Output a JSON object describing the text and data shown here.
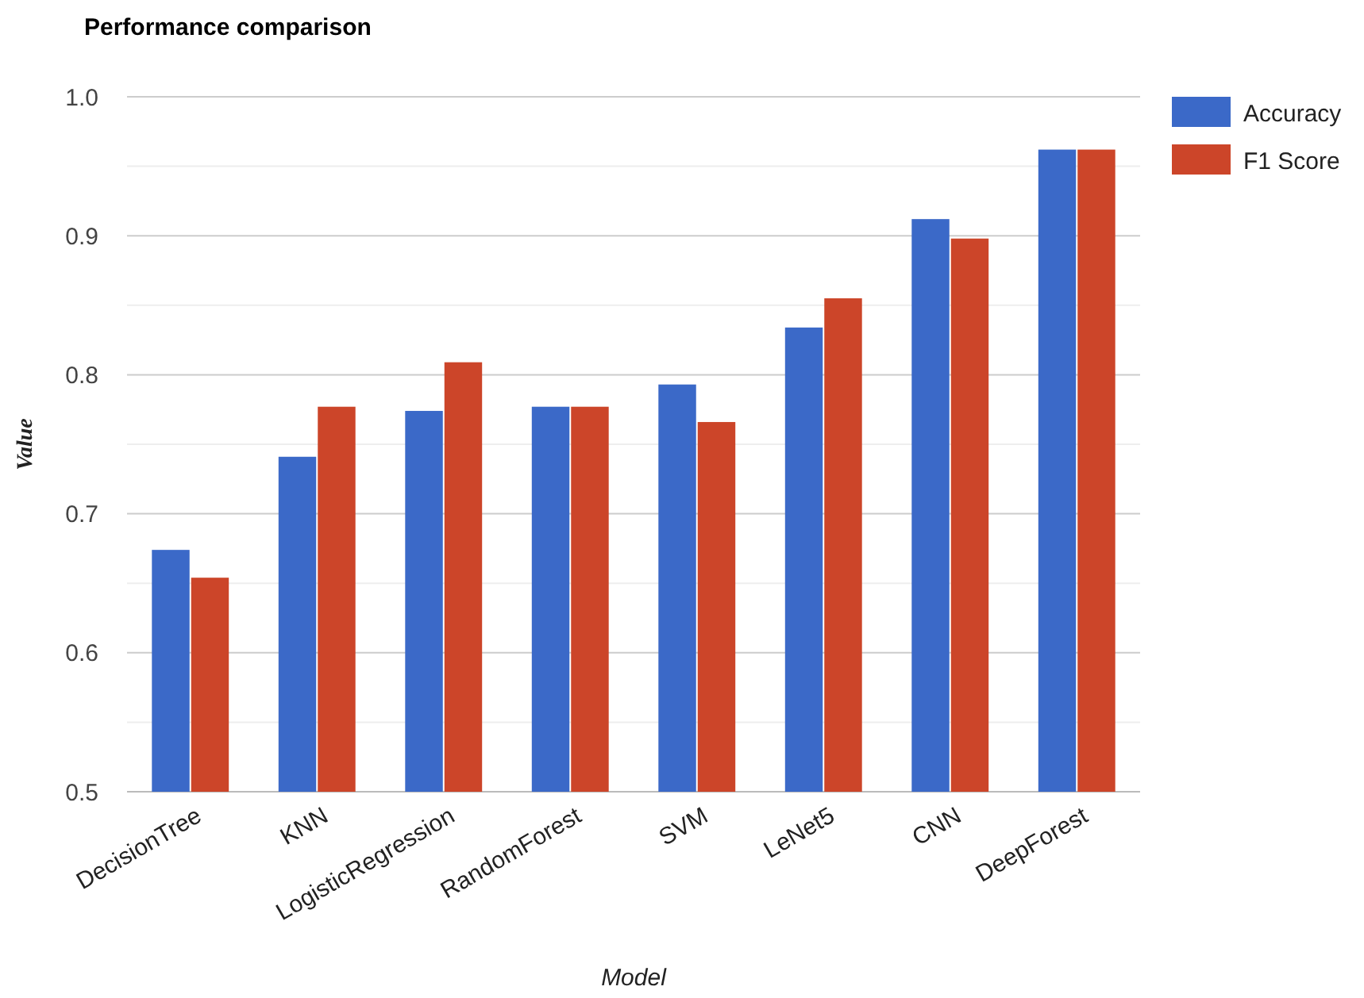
{
  "chart_data": {
    "type": "bar",
    "title": "Performance comparison",
    "xlabel": "Model",
    "ylabel": "Value",
    "categories": [
      "DecisionTree",
      "KNN",
      "LogisticRegression",
      "RandomForest",
      "SVM",
      "LeNet5",
      "CNN",
      "DeepForest"
    ],
    "series": [
      {
        "name": "Accuracy",
        "color": "#3b69c8",
        "values": [
          0.674,
          0.741,
          0.774,
          0.777,
          0.793,
          0.834,
          0.912,
          0.962
        ]
      },
      {
        "name": "F1 Score",
        "color": "#cc4529",
        "values": [
          0.654,
          0.777,
          0.809,
          0.777,
          0.766,
          0.855,
          0.898,
          0.962
        ]
      }
    ],
    "ylim": [
      0.5,
      1.0
    ],
    "yticks": [
      0.5,
      {
        "value": 0.55,
        "label": null
      },
      0.6,
      {
        "value": 0.65,
        "label": null
      },
      0.7,
      {
        "value": 0.75,
        "label": null
      },
      0.8,
      {
        "value": 0.85,
        "label": null
      },
      0.9,
      {
        "value": 0.95,
        "label": null
      },
      {
        "value": 1,
        "label": "1.0"
      }
    ],
    "grid": true,
    "legend": "top right"
  }
}
